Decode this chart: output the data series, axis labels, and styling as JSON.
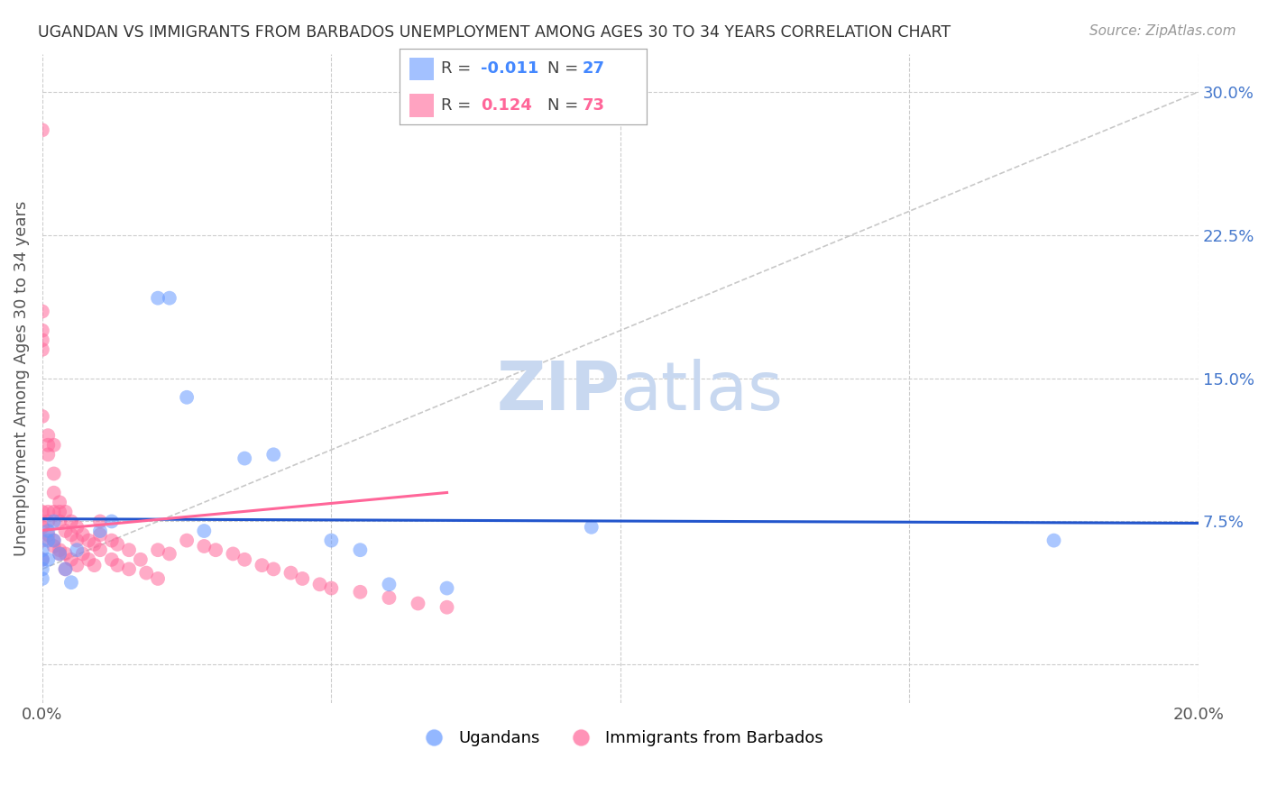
{
  "title": "UGANDAN VS IMMIGRANTS FROM BARBADOS UNEMPLOYMENT AMONG AGES 30 TO 34 YEARS CORRELATION CHART",
  "source": "Source: ZipAtlas.com",
  "ylabel": "Unemployment Among Ages 30 to 34 years",
  "xlabel": "",
  "xlim": [
    0.0,
    0.2
  ],
  "ylim": [
    -0.02,
    0.32
  ],
  "ytick_vals": [
    0.0,
    0.075,
    0.15,
    0.225,
    0.3
  ],
  "ytick_labels": [
    "",
    "7.5%",
    "15.0%",
    "22.5%",
    "30.0%"
  ],
  "xtick_vals": [
    0.0,
    0.05,
    0.1,
    0.15,
    0.2
  ],
  "xtick_labels": [
    "0.0%",
    "",
    "",
    "",
    "20.0%"
  ],
  "ugandan_color": "#6699ff",
  "barbados_color": "#ff6699",
  "ug_line_color": "#2255cc",
  "bb_line_color": "#ff6699",
  "diag_line_color": "#cccccc",
  "ugandan_R": -0.011,
  "ugandan_N": 27,
  "barbados_R": 0.124,
  "barbados_N": 73,
  "legend_R_color_ug": "#4488ff",
  "legend_N_color_ug": "#4488ff",
  "legend_R_color_bb": "#ff6699",
  "legend_N_color_bb": "#ff6699",
  "watermark_zip_color": "#c8d8f0",
  "watermark_atlas_color": "#c8d8f0",
  "background_color": "#ffffff",
  "grid_color": "#cccccc",
  "title_color": "#333333",
  "source_color": "#999999",
  "ylabel_color": "#555555",
  "ytick_color": "#4477cc",
  "xtick_color": "#555555"
}
